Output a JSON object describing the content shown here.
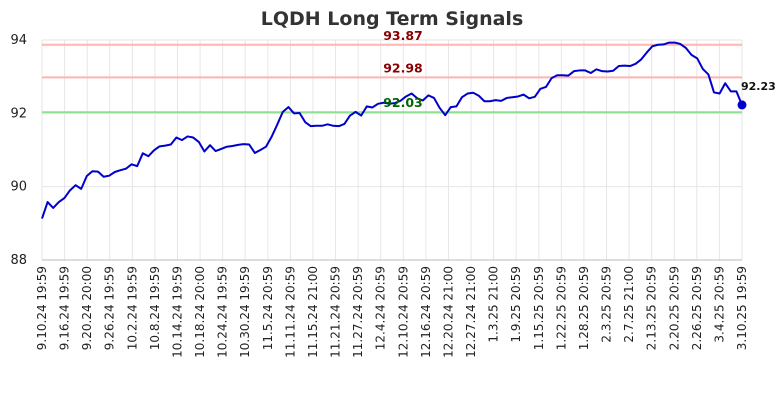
{
  "chart_data": {
    "type": "line",
    "title": "LQDH Long Term Signals",
    "xlabel": "",
    "ylabel": "",
    "ylim": [
      88,
      94
    ],
    "yticks": [
      "88",
      "90",
      "92",
      "94"
    ],
    "xtick_labels": [
      "9.10.24 19:59",
      "9.16.24 19:59",
      "9.20.24 20:00",
      "9.26.24 19:59",
      "10.2.24 19:59",
      "10.8.24 19:59",
      "10.14.24 19:59",
      "10.18.24 20:00",
      "10.24.24 19:59",
      "10.30.24 19:59",
      "11.5.24 20:59",
      "11.11.24 20:59",
      "11.15.24 21:00",
      "11.21.24 20:59",
      "11.27.24 20:59",
      "12.4.24 20:59",
      "12.10.24 20:59",
      "12.16.24 20:59",
      "12.20.24 21:00",
      "12.27.24 21:00",
      "1.3.25 21:00",
      "1.9.25 20:59",
      "1.15.25 20:59",
      "1.22.25 20:59",
      "1.28.25 20:59",
      "2.3.25 20:59",
      "2.7.25 21:00",
      "2.13.25 20:59",
      "2.20.25 20:59",
      "2.26.25 20:59",
      "3.4.25 20:59",
      "3.10.25 19:59"
    ],
    "series": [
      {
        "color": "#0000cc",
        "values": [
          89.13,
          89.58,
          89.42,
          89.58,
          89.69,
          89.9,
          90.04,
          89.94,
          90.29,
          90.42,
          90.41,
          90.27,
          90.3,
          90.4,
          90.45,
          90.49,
          90.61,
          90.56,
          90.91,
          90.83,
          90.99,
          91.1,
          91.12,
          91.15,
          91.34,
          91.27,
          91.37,
          91.34,
          91.22,
          90.96,
          91.13,
          90.97,
          91.03,
          91.09,
          91.11,
          91.14,
          91.16,
          91.15,
          90.92,
          91.0,
          91.09,
          91.36,
          91.69,
          92.04,
          92.17,
          92.0,
          92.01,
          91.76,
          91.65,
          91.66,
          91.66,
          91.7,
          91.66,
          91.65,
          91.71,
          91.94,
          92.04,
          91.94,
          92.19,
          92.16,
          92.26,
          92.29,
          92.26,
          92.28,
          92.34,
          92.46,
          92.54,
          92.41,
          92.35,
          92.49,
          92.42,
          92.15,
          91.95,
          92.17,
          92.19,
          92.44,
          92.54,
          92.56,
          92.48,
          92.33,
          92.33,
          92.36,
          92.34,
          92.42,
          92.44,
          92.46,
          92.51,
          92.41,
          92.45,
          92.67,
          92.72,
          92.96,
          93.04,
          93.04,
          93.03,
          93.15,
          93.17,
          93.17,
          93.1,
          93.2,
          93.15,
          93.14,
          93.16,
          93.29,
          93.3,
          93.29,
          93.35,
          93.47,
          93.66,
          93.83,
          93.87,
          93.88,
          93.93,
          93.93,
          93.89,
          93.78,
          93.59,
          93.5,
          93.21,
          93.06,
          92.57,
          92.54,
          92.82,
          92.6,
          92.6,
          92.23
        ]
      }
    ],
    "levels": [
      {
        "value": 93.87,
        "label": "93.87",
        "line_color": "#ffb3b3",
        "text_color": "#8b0000"
      },
      {
        "value": 92.98,
        "label": "92.98",
        "line_color": "#ffb3b3",
        "text_color": "#8b0000"
      },
      {
        "value": 92.03,
        "label": "92.03",
        "line_color": "#90e090",
        "text_color": "#006400"
      }
    ],
    "last_point": {
      "value": 92.23,
      "label": "92.23"
    },
    "grid": true,
    "grid_color": "#e6e6e6"
  }
}
